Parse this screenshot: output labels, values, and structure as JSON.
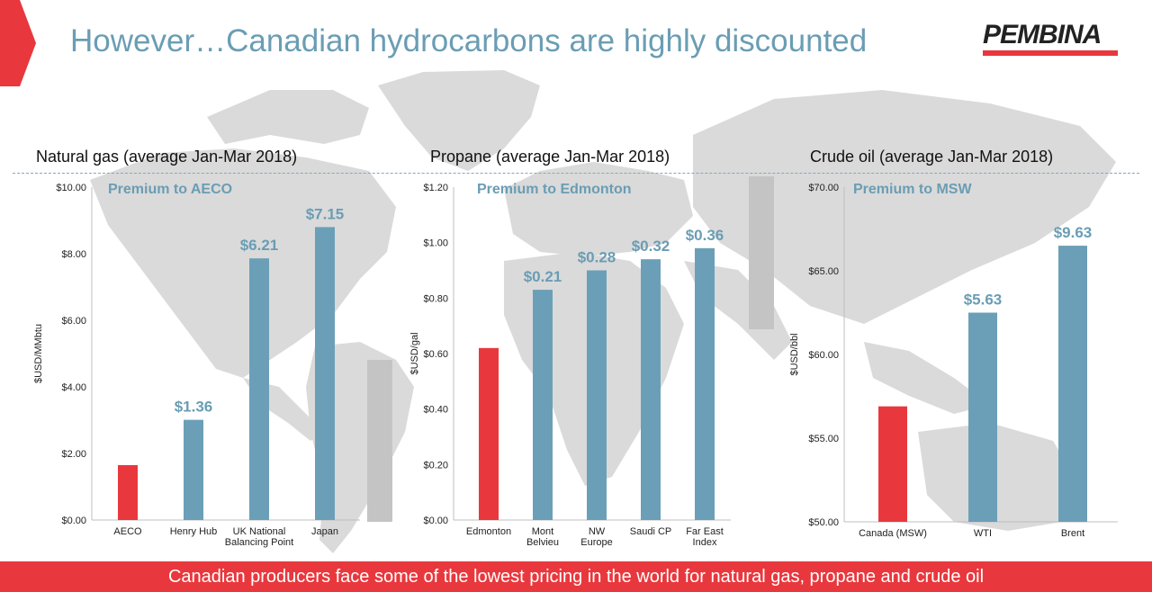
{
  "title": "However…Canadian hydrocarbons are highly discounted",
  "logo_text": "PEMBINA",
  "footer": "Canadian producers face some of the lowest pricing in the world for natural gas, propane and crude oil",
  "colors": {
    "accent_red": "#e8383d",
    "bar_blue": "#6b9fb8",
    "title_blue": "#6a9db4",
    "map_grey": "#d8d8d8"
  },
  "chart_data": [
    {
      "type": "bar",
      "title": "Natural gas (average Jan-Mar 2018)",
      "subtitle": "Premium to AECO",
      "ylabel": "$USD/MMbtu",
      "ylim": [
        0,
        10
      ],
      "yticks": [
        "$0.00",
        "$2.00",
        "$4.00",
        "$6.00",
        "$8.00",
        "$10.00"
      ],
      "categories": [
        "AECO",
        "Henry Hub",
        "UK National\nBalancing Point",
        "Japan"
      ],
      "values": [
        1.65,
        3.01,
        7.86,
        8.8
      ],
      "premium_labels": [
        "",
        "$1.36",
        "$6.21",
        "$7.15"
      ],
      "colors": [
        "#e8383d",
        "#6b9fb8",
        "#6b9fb8",
        "#6b9fb8"
      ]
    },
    {
      "type": "bar",
      "title": "Propane (average Jan-Mar 2018)",
      "subtitle": "Premium to Edmonton",
      "ylabel": "$USD/gal",
      "ylim": [
        0,
        1.2
      ],
      "yticks": [
        "$0.00",
        "$0.20",
        "$0.40",
        "$0.60",
        "$0.80",
        "$1.00",
        "$1.20"
      ],
      "categories": [
        "Edmonton",
        "Mont\nBelvieu",
        "NW\nEurope",
        "Saudi CP",
        "Far East\nIndex"
      ],
      "values": [
        0.62,
        0.83,
        0.9,
        0.94,
        0.98
      ],
      "premium_labels": [
        "",
        "$0.21",
        "$0.28",
        "$0.32",
        "$0.36"
      ],
      "colors": [
        "#e8383d",
        "#6b9fb8",
        "#6b9fb8",
        "#6b9fb8",
        "#6b9fb8"
      ]
    },
    {
      "type": "bar",
      "title": "Crude oil (average Jan-Mar 2018)",
      "subtitle": "Premium to MSW",
      "ylabel": "$USD/bbl",
      "ylim": [
        50,
        70
      ],
      "yticks": [
        "$50.00",
        "$55.00",
        "$60.00",
        "$65.00",
        "$70.00"
      ],
      "categories": [
        "Canada (MSW)",
        "WTI",
        "Brent"
      ],
      "values": [
        56.9,
        62.5,
        66.5
      ],
      "premium_labels": [
        "",
        "$5.63",
        "$9.63"
      ],
      "colors": [
        "#e8383d",
        "#6b9fb8",
        "#6b9fb8"
      ]
    }
  ]
}
